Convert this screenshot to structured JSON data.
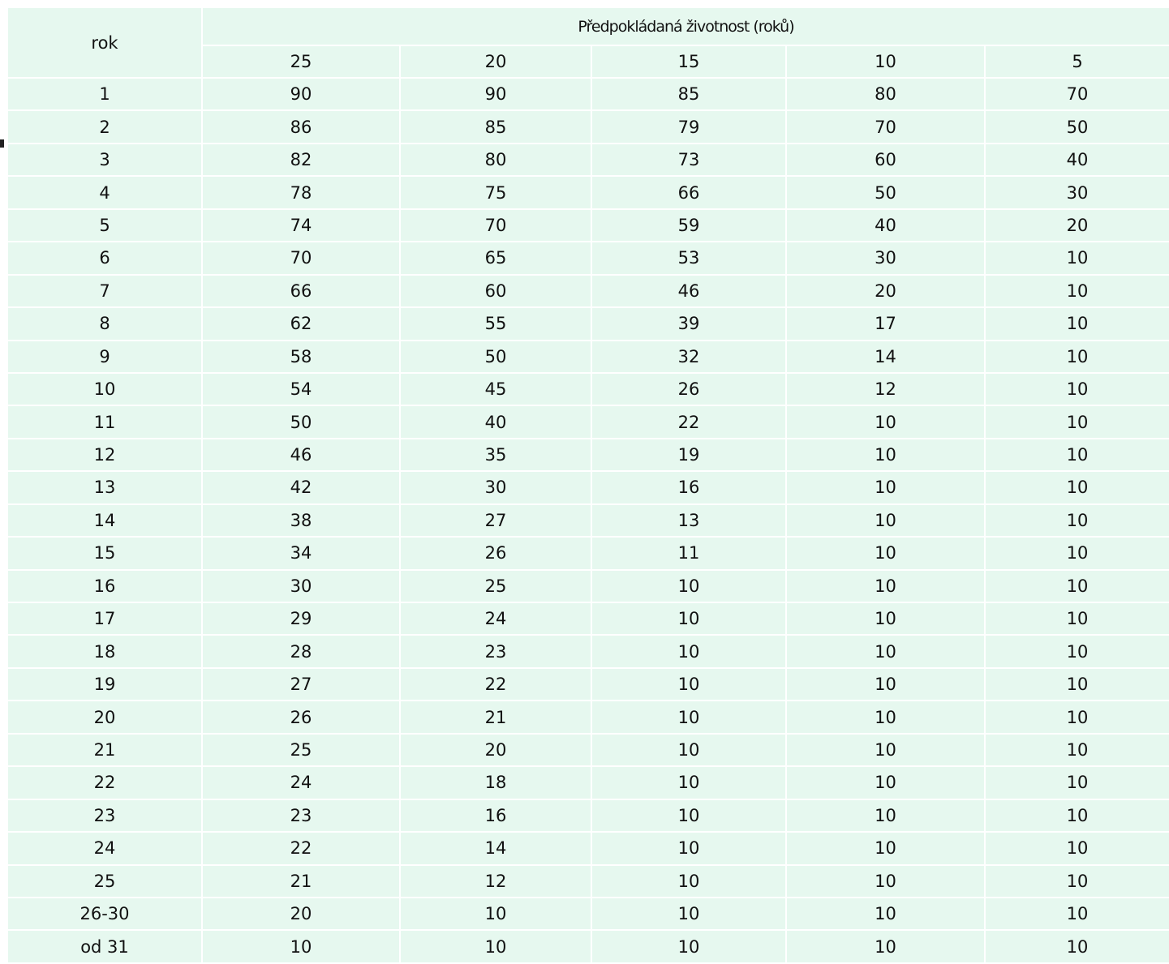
{
  "table": {
    "corner": "rok",
    "group_header": "Předpokládaná životnost (roků)",
    "columns": [
      25,
      20,
      15,
      10,
      5
    ],
    "rows": [
      [
        "1",
        90,
        90,
        85,
        80,
        70
      ],
      [
        "2",
        86,
        85,
        79,
        70,
        50
      ],
      [
        "3",
        82,
        80,
        73,
        60,
        40
      ],
      [
        "4",
        78,
        75,
        66,
        50,
        30
      ],
      [
        "5",
        74,
        70,
        59,
        40,
        20
      ],
      [
        "6",
        70,
        65,
        53,
        30,
        10
      ],
      [
        "7",
        66,
        60,
        46,
        20,
        10
      ],
      [
        "8",
        62,
        55,
        39,
        17,
        10
      ],
      [
        "9",
        58,
        50,
        32,
        14,
        10
      ],
      [
        "10",
        54,
        45,
        26,
        12,
        10
      ],
      [
        "11",
        50,
        40,
        22,
        10,
        10
      ],
      [
        "12",
        46,
        35,
        19,
        10,
        10
      ],
      [
        "13",
        42,
        30,
        16,
        10,
        10
      ],
      [
        "14",
        38,
        27,
        13,
        10,
        10
      ],
      [
        "15",
        34,
        26,
        11,
        10,
        10
      ],
      [
        "16",
        30,
        25,
        10,
        10,
        10
      ],
      [
        "17",
        29,
        24,
        10,
        10,
        10
      ],
      [
        "18",
        28,
        23,
        10,
        10,
        10
      ],
      [
        "19",
        27,
        22,
        10,
        10,
        10
      ],
      [
        "20",
        26,
        21,
        10,
        10,
        10
      ],
      [
        "21",
        25,
        20,
        10,
        10,
        10
      ],
      [
        "22",
        24,
        18,
        10,
        10,
        10
      ],
      [
        "23",
        23,
        16,
        10,
        10,
        10
      ],
      [
        "24",
        22,
        14,
        10,
        10,
        10
      ],
      [
        "25",
        21,
        12,
        10,
        10,
        10
      ],
      [
        "26-30",
        20,
        10,
        10,
        10,
        10
      ],
      [
        "od 31",
        10,
        10,
        10,
        10,
        10
      ]
    ]
  }
}
